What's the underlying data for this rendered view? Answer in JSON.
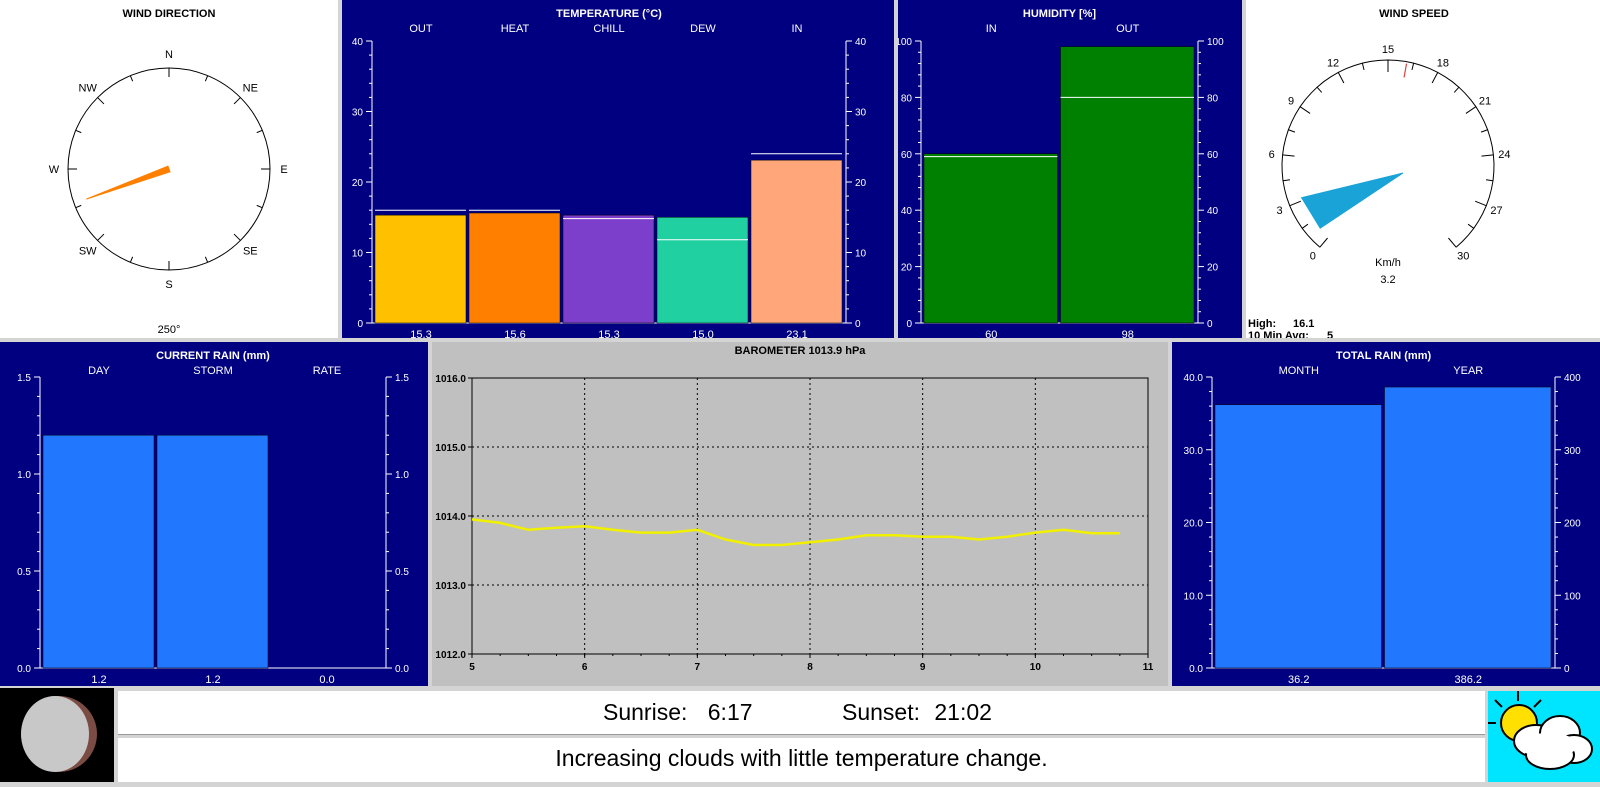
{
  "wind_direction": {
    "title": "WIND DIRECTION",
    "compass_labels": [
      "N",
      "NE",
      "E",
      "SE",
      "S",
      "SW",
      "W",
      "NW"
    ],
    "degrees_text": "250°",
    "bearing": 250,
    "needle_color": "#ff8000"
  },
  "temperature": {
    "title": "TEMPERATURE  (°C)",
    "ticks": [
      "0",
      "10",
      "20",
      "30",
      "40"
    ],
    "bars": [
      {
        "label": "OUT",
        "value": 15.3,
        "value_text": "15.3",
        "color": "#ffc000",
        "marker": 16
      },
      {
        "label": "HEAT",
        "value": 15.6,
        "value_text": "15.6",
        "color": "#ff8000",
        "marker": 16
      },
      {
        "label": "CHILL",
        "value": 15.3,
        "value_text": "15.3",
        "color": "#7b3fcc",
        "marker": 14.8
      },
      {
        "label": "DEW",
        "value": 15.0,
        "value_text": "15.0",
        "color": "#20d0a0",
        "marker": 11.8
      },
      {
        "label": "IN",
        "value": 23.1,
        "value_text": "23.1",
        "color": "#ffa77a",
        "marker": 24
      }
    ]
  },
  "humidity": {
    "title": "HUMIDITY  [%]",
    "ticks": [
      "0",
      "20",
      "40",
      "60",
      "80",
      "100"
    ],
    "bars": [
      {
        "label": "IN",
        "value": 60,
        "value_text": "60",
        "color": "#008000",
        "marker": 59
      },
      {
        "label": "OUT",
        "value": 98,
        "value_text": "98",
        "color": "#008000",
        "marker": 80
      }
    ]
  },
  "wind_speed": {
    "title": "WIND SPEED",
    "scale_labels": [
      "0",
      "3",
      "6",
      "9",
      "12",
      "15",
      "18",
      "21",
      "24",
      "27",
      "30"
    ],
    "unit": "Km/h",
    "current_text": "3.2",
    "current": 3.2,
    "gust": 16.1,
    "high_label": "High:",
    "high_value": "16.1",
    "avg_label": "10 Min Avg:",
    "avg_value": "5",
    "pointer_color": "#1aa3d6"
  },
  "current_rain": {
    "title": "CURRENT RAIN  (mm)",
    "ticks": [
      "0.0",
      "0.5",
      "1.0",
      "1.5"
    ],
    "bars": [
      {
        "label": "DAY",
        "value": 1.2,
        "value_text": "1.2"
      },
      {
        "label": "STORM",
        "value": 1.2,
        "value_text": "1.2"
      },
      {
        "label": "RATE",
        "value": 0.0,
        "value_text": "0.0"
      }
    ],
    "bar_color": "#2277ff"
  },
  "barometer": {
    "title": "BAROMETER 1013.9 hPa",
    "y_ticks": [
      "1012.0",
      "1013.0",
      "1014.0",
      "1015.0",
      "1016.0"
    ],
    "x_ticks": [
      "5",
      "6",
      "7",
      "8",
      "9",
      "10",
      "11"
    ],
    "line_color": "#f0f000"
  },
  "total_rain": {
    "title": "TOTAL RAIN  (mm)",
    "left_ticks": [
      "0.0",
      "10.0",
      "20.0",
      "30.0",
      "40.0"
    ],
    "right_ticks": [
      "0",
      "100",
      "200",
      "300",
      "400"
    ],
    "bars": [
      {
        "label": "MONTH",
        "value": 36.2,
        "value_text": "36.2",
        "max": 40
      },
      {
        "label": "YEAR",
        "value": 386.2,
        "value_text": "386.2",
        "max": 400
      }
    ],
    "bar_color": "#2277ff"
  },
  "sun": {
    "sunrise_label": "Sunrise:",
    "sunrise": "6:17",
    "sunset_label": "Sunset:",
    "sunset": "21:02"
  },
  "forecast": {
    "text": "Increasing clouds with little temperature change."
  },
  "icons": {
    "moon": "moon-phase-icon",
    "weather": "partly-cloudy-icon"
  },
  "chart_data": [
    {
      "type": "bar",
      "title": "TEMPERATURE  (°C)",
      "categories": [
        "OUT",
        "HEAT",
        "CHILL",
        "DEW",
        "IN"
      ],
      "values": [
        15.3,
        15.6,
        15.3,
        15.0,
        23.1
      ],
      "ylim": [
        0,
        40
      ]
    },
    {
      "type": "bar",
      "title": "HUMIDITY  [%]",
      "categories": [
        "IN",
        "OUT"
      ],
      "values": [
        60,
        98
      ],
      "ylim": [
        0,
        100
      ]
    },
    {
      "type": "bar",
      "title": "CURRENT RAIN  (mm)",
      "categories": [
        "DAY",
        "STORM",
        "RATE"
      ],
      "values": [
        1.2,
        1.2,
        0.0
      ],
      "ylim": [
        0,
        1.5
      ]
    },
    {
      "type": "line",
      "title": "BAROMETER 1013.9 hPa",
      "x": [
        5,
        5.25,
        5.5,
        5.75,
        6,
        6.25,
        6.5,
        6.75,
        7,
        7.25,
        7.5,
        7.75,
        8,
        8.25,
        8.5,
        8.75,
        9,
        9.25,
        9.5,
        9.75,
        10,
        10.25,
        10.5,
        10.75
      ],
      "series": [
        {
          "values": [
            1013.95,
            1013.9,
            1013.8,
            1013.83,
            1013.85,
            1013.8,
            1013.76,
            1013.76,
            1013.8,
            1013.66,
            1013.58,
            1013.58,
            1013.62,
            1013.66,
            1013.72,
            1013.72,
            1013.7,
            1013.7,
            1013.66,
            1013.7,
            1013.76,
            1013.8,
            1013.75,
            1013.75
          ]
        }
      ],
      "xlim": [
        5,
        11
      ],
      "ylim": [
        1012.0,
        1016.0
      ]
    },
    {
      "type": "bar",
      "title": "TOTAL RAIN  (mm)",
      "categories": [
        "MONTH",
        "YEAR"
      ],
      "values": [
        36.2,
        386.2
      ]
    }
  ]
}
